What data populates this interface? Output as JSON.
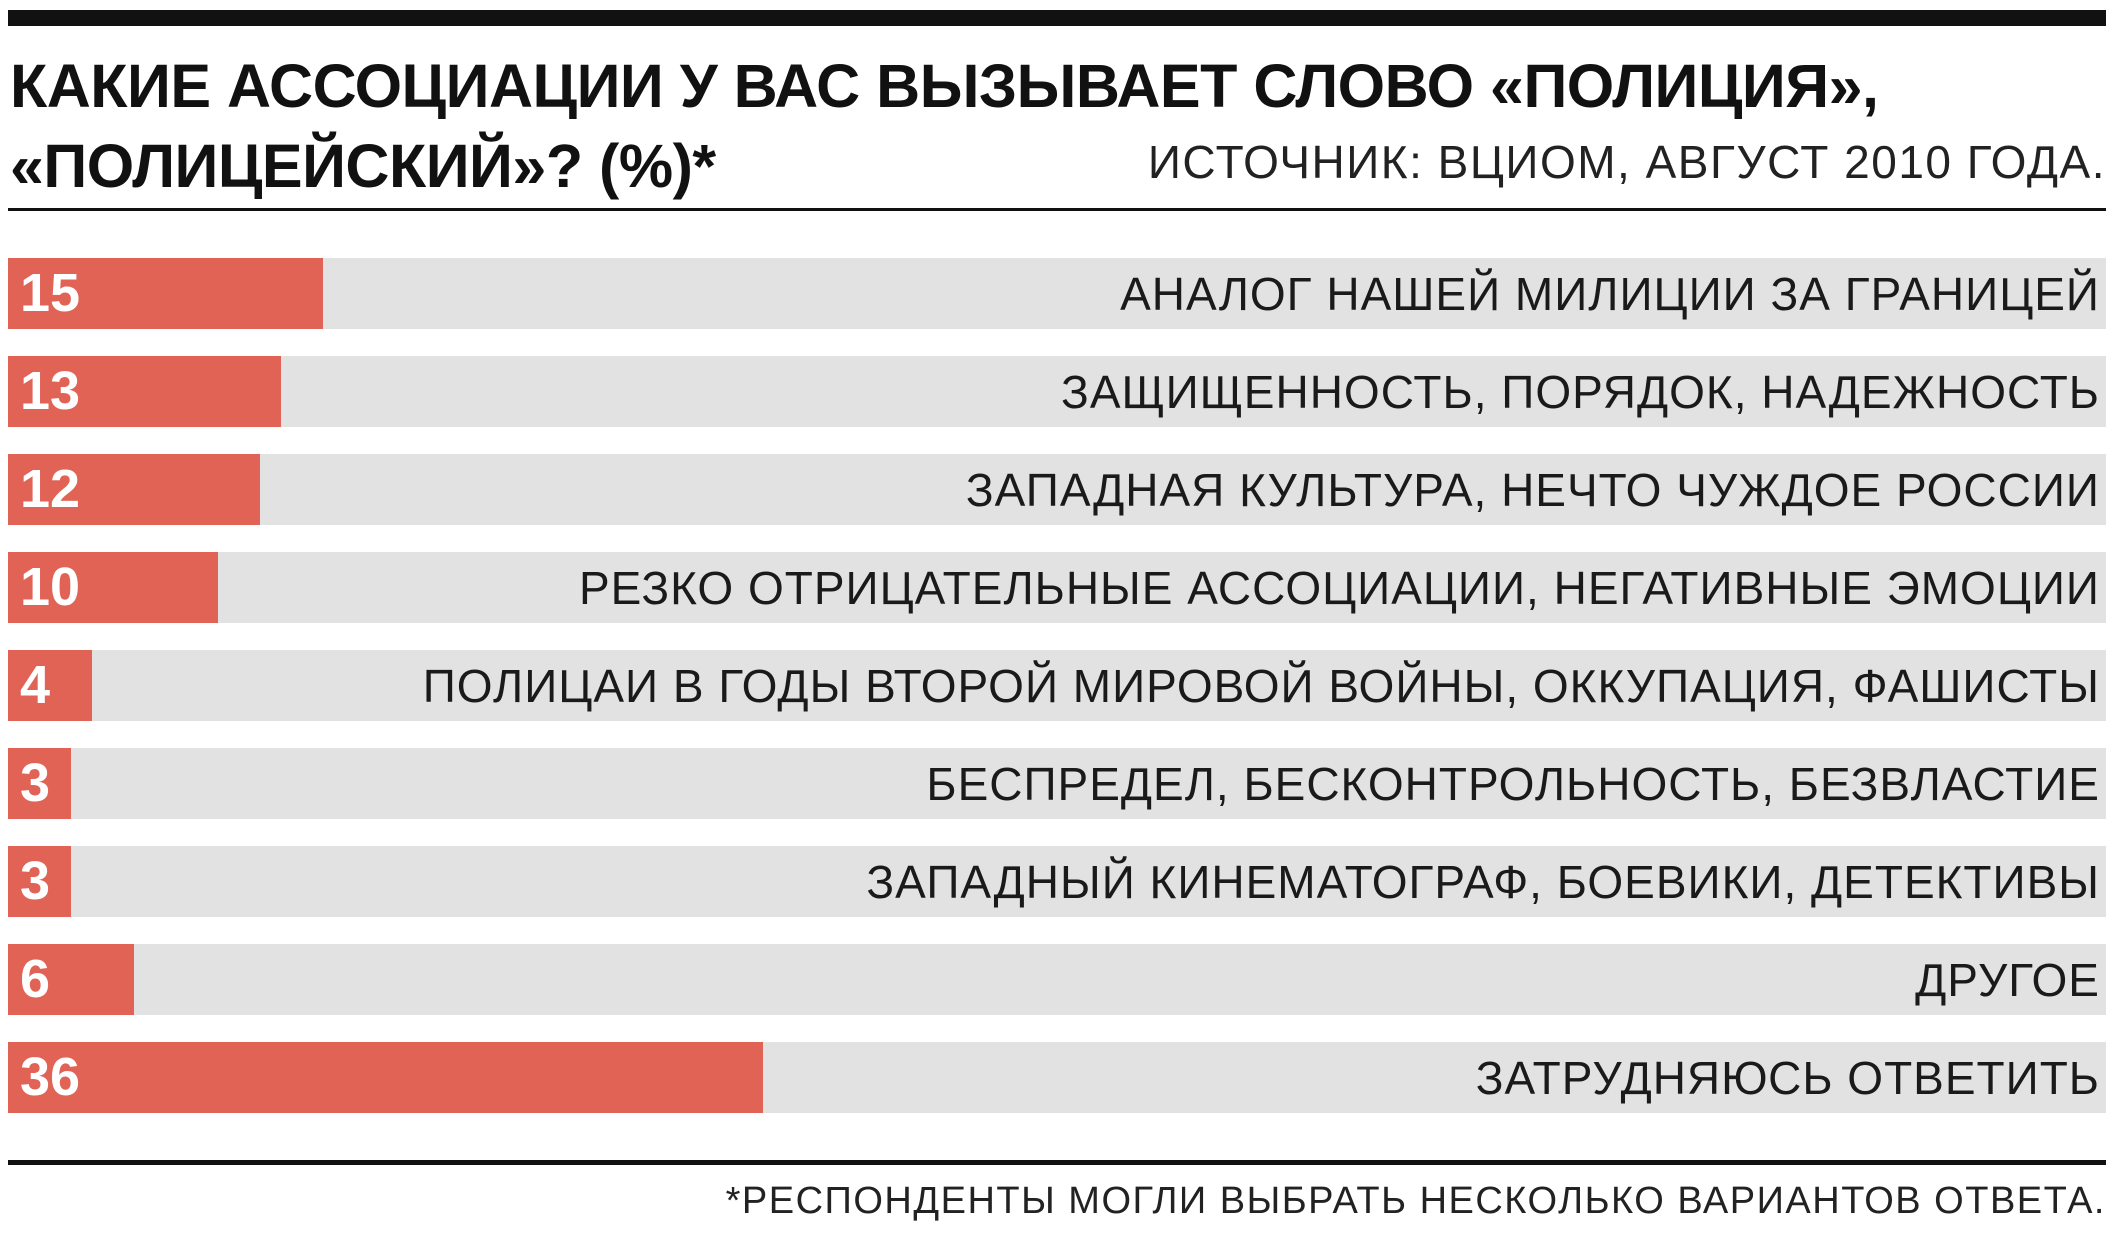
{
  "chart_data": {
    "type": "bar",
    "orientation": "horizontal",
    "title_line1": "КАКИЕ АССОЦИАЦИИ У ВАС ВЫЗЫВАЕТ СЛОВО «ПОЛИЦИЯ»,",
    "title_line2": "«ПОЛИЦЕЙСКИЙ»? (%)*",
    "source": "ИСТОЧНИК: ВЦИОМ, АВГУСТ 2010 ГОДА.",
    "footnote": "*РЕСПОНДЕНТЫ МОГЛИ ВЫБРАТЬ НЕСКОЛЬКО ВАРИАНТОВ ОТВЕТА.",
    "xlim": [
      0,
      100
    ],
    "categories": [
      "АНАЛОГ НАШЕЙ МИЛИЦИИ ЗА ГРАНИЦЕЙ",
      "ЗАЩИЩЕННОСТЬ, ПОРЯДОК, НАДЕЖНОСТЬ",
      "ЗАПАДНАЯ КУЛЬТУРА, НЕЧТО ЧУЖДОЕ РОССИИ",
      "РЕЗКО ОТРИЦАТЕЛЬНЫЕ АССОЦИАЦИИ, НЕГАТИВНЫЕ ЭМОЦИИ",
      "ПОЛИЦАИ В ГОДЫ ВТОРОЙ МИРОВОЙ ВОЙНЫ, ОККУПАЦИЯ, ФАШИСТЫ",
      "БЕСПРЕДЕЛ, БЕСКОНТРОЛЬНОСТЬ, БЕЗВЛАСТИЕ",
      "ЗАПАДНЫЙ КИНЕМАТОГРАФ, БОЕВИКИ, ДЕТЕКТИВЫ",
      "ДРУГОЕ",
      "ЗАТРУДНЯЮСЬ ОТВЕТИТЬ"
    ],
    "values": [
      15,
      13,
      12,
      10,
      4,
      3,
      3,
      6,
      36
    ],
    "colors": {
      "bar": "#e06355",
      "track": "#e2e2e2",
      "value_text": "#ffffff",
      "label_text": "#1a1a1a"
    }
  }
}
